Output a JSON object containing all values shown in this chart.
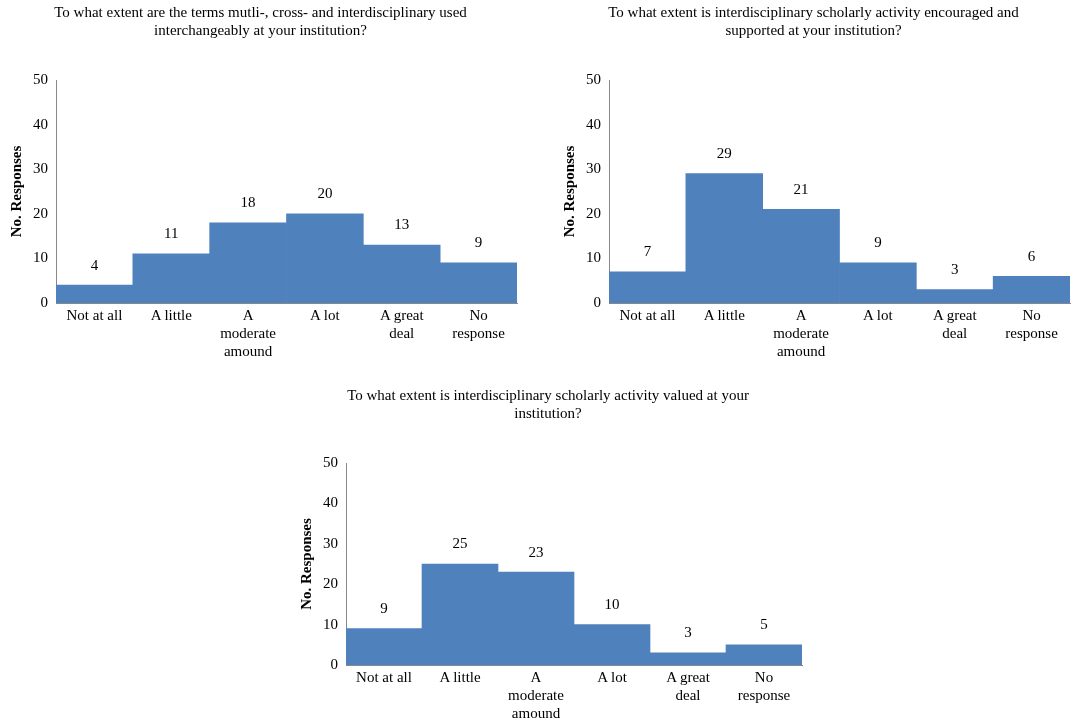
{
  "chart_data": [
    {
      "type": "bar",
      "title": "To what extent are the terms mutli-, cross- and interdisciplinary used interchangeably at your institution?",
      "ylabel": "No. Responses",
      "categories": [
        "Not at all",
        "A little",
        "A moderate amound",
        "A lot",
        "A great deal",
        "No response"
      ],
      "values": [
        4,
        11,
        18,
        20,
        13,
        9
      ],
      "color": "#4f81bd",
      "ylim": [
        0,
        50
      ],
      "yticks": [
        0,
        10,
        20,
        30,
        40,
        50
      ],
      "data_labels": true
    },
    {
      "type": "bar",
      "title": "To what extent is interdisciplinary scholarly activity encouraged and supported at your institution?",
      "ylabel": "No. Responses",
      "categories": [
        "Not at all",
        "A little",
        "A moderate amound",
        "A lot",
        "A great deal",
        "No response"
      ],
      "values": [
        7,
        29,
        21,
        9,
        3,
        6
      ],
      "color": "#4f81bd",
      "ylim": [
        0,
        50
      ],
      "yticks": [
        0,
        10,
        20,
        30,
        40,
        50
      ],
      "data_labels": true
    },
    {
      "type": "bar",
      "title": "To what extent is interdisciplinary scholarly activity valued at your institution?",
      "ylabel": "No. Responses",
      "categories": [
        "Not at all",
        "A little",
        "A moderate amound",
        "A lot",
        "A great deal",
        "No response"
      ],
      "values": [
        9,
        25,
        23,
        10,
        3,
        5
      ],
      "color": "#4f81bd",
      "ylim": [
        0,
        50
      ],
      "yticks": [
        0,
        10,
        20,
        30,
        40,
        50
      ],
      "data_labels": true
    }
  ]
}
